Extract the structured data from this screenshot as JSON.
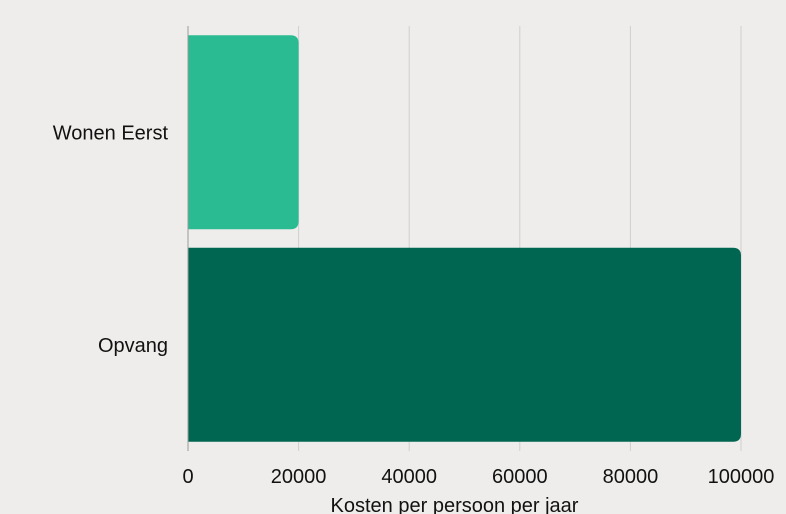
{
  "chart_data": {
    "type": "bar",
    "orientation": "horizontal",
    "categories": [
      "Wonen Eerst",
      "Opvang"
    ],
    "values": [
      20000,
      100000
    ],
    "colors": [
      "#2bbb92",
      "#006652"
    ],
    "xlabel": "Kosten per persoon per jaar",
    "ylabel": "",
    "xlim": [
      0,
      100000
    ],
    "xticks": [
      "0",
      "20000",
      "40000",
      "60000",
      "80000",
      "100000"
    ],
    "grid": true
  }
}
